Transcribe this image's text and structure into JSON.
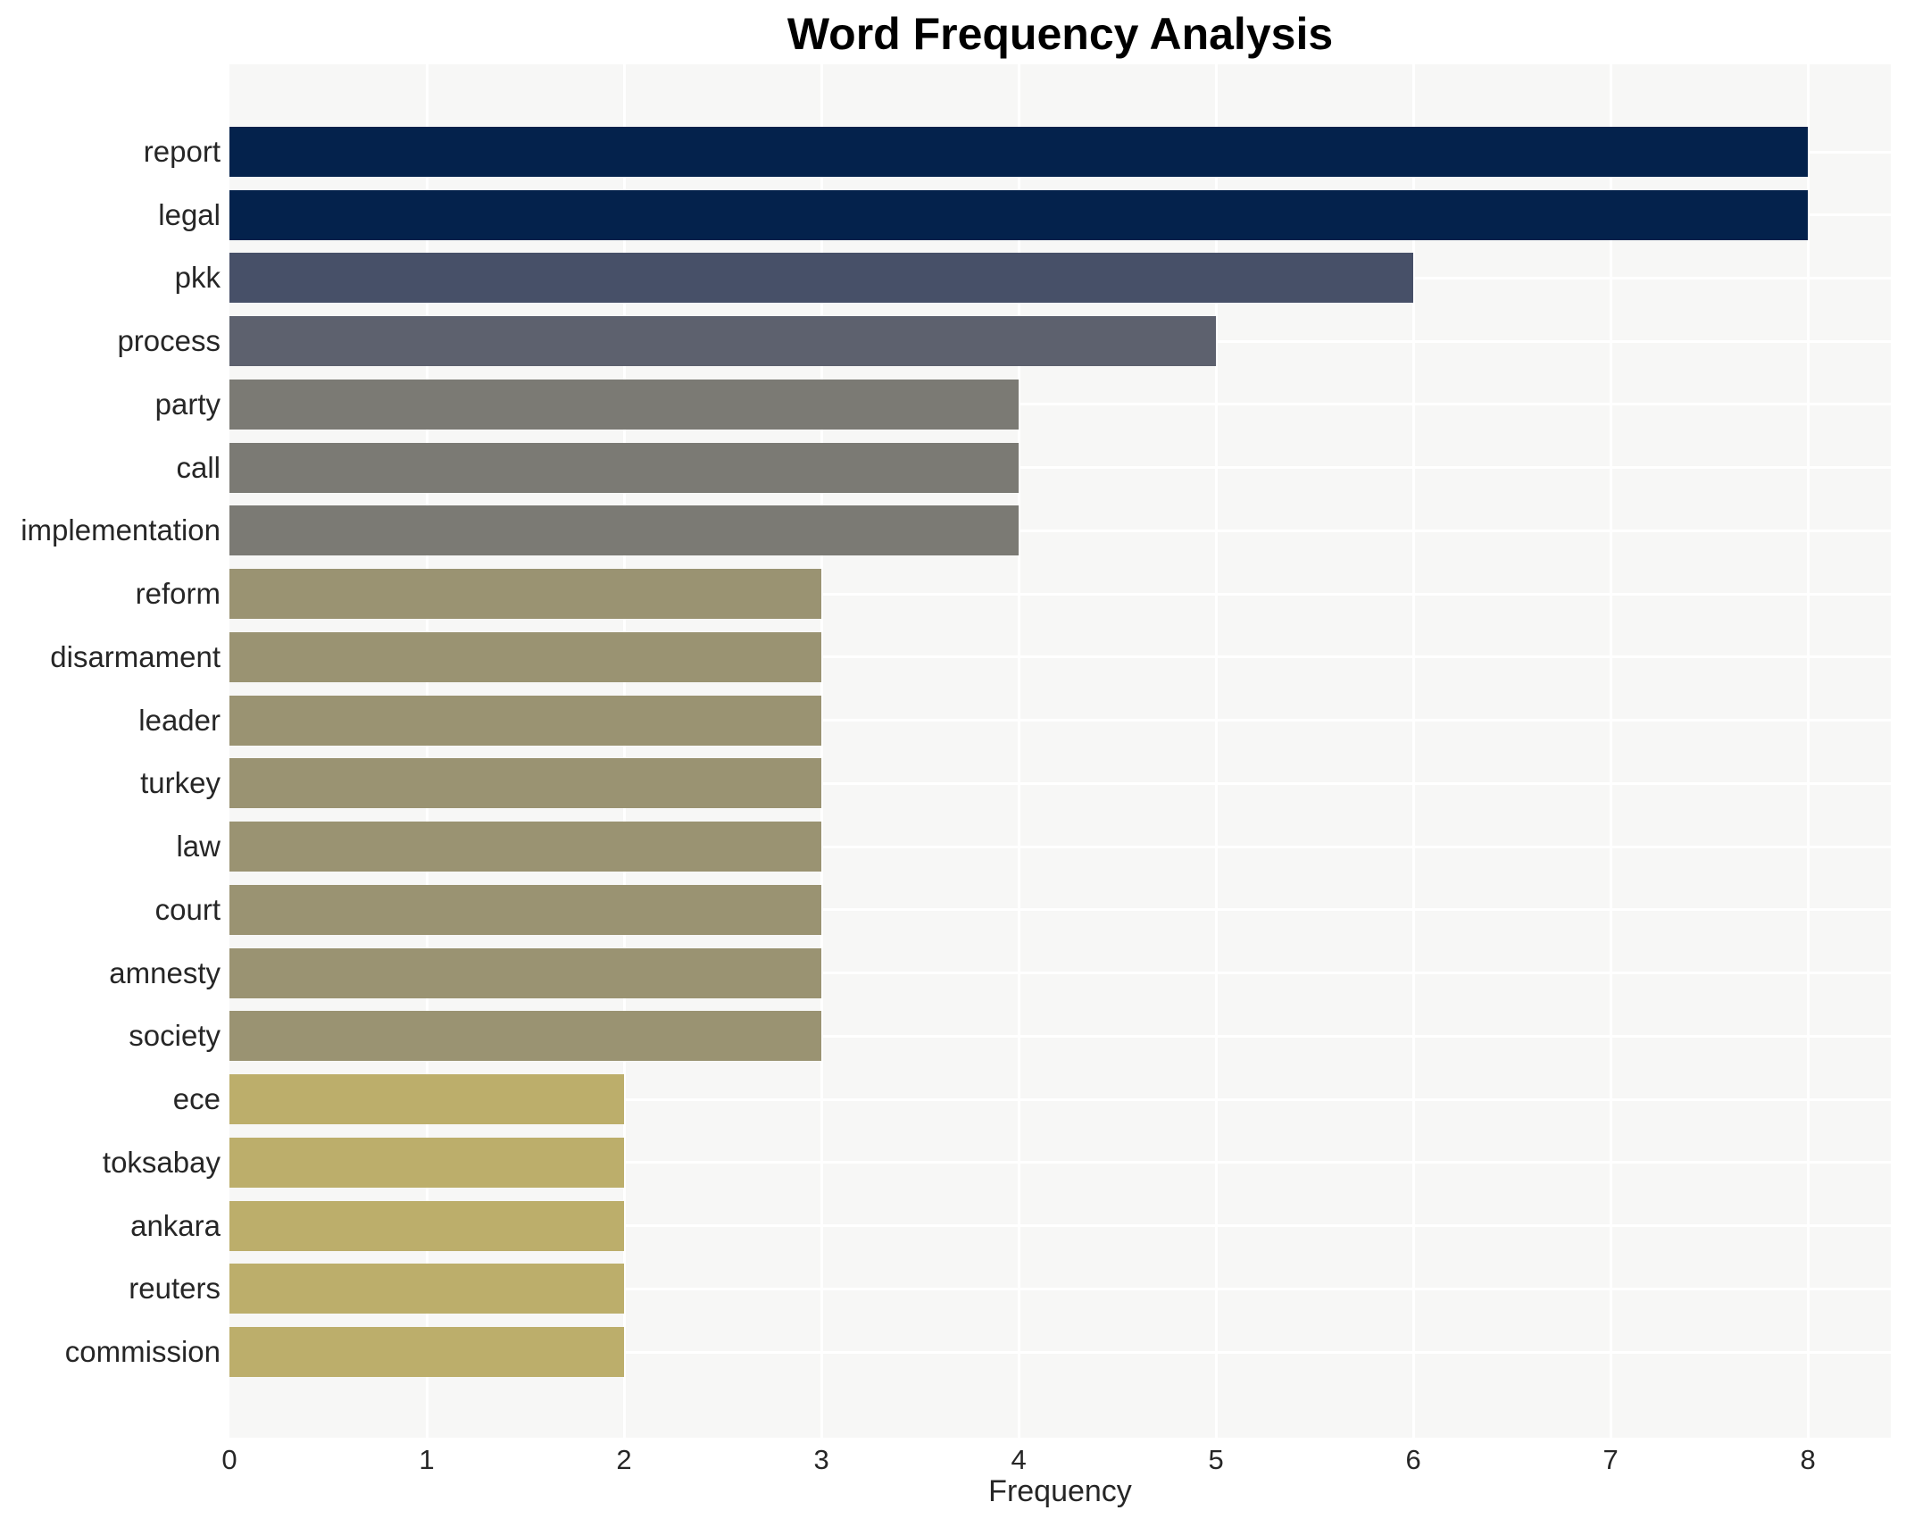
{
  "title": "Word Frequency Analysis",
  "xlabel": "Frequency",
  "colors": {
    "plot_background": "#f7f7f6",
    "grid": "#ffffff",
    "page_background": "#ffffff",
    "title_text": "#000000",
    "tick_text": "#262626"
  },
  "chart_data": {
    "type": "bar",
    "orientation": "horizontal",
    "title": "Word Frequency Analysis",
    "xlabel": "Frequency",
    "ylabel": "",
    "categories": [
      "report",
      "legal",
      "pkk",
      "process",
      "party",
      "call",
      "implementation",
      "reform",
      "disarmament",
      "leader",
      "turkey",
      "law",
      "court",
      "amnesty",
      "society",
      "ece",
      "toksabay",
      "ankara",
      "reuters",
      "commission"
    ],
    "values": [
      8,
      8,
      6,
      5,
      4,
      4,
      4,
      3,
      3,
      3,
      3,
      3,
      3,
      3,
      3,
      2,
      2,
      2,
      2,
      2
    ],
    "bar_colors": [
      "#04224c",
      "#04224c",
      "#475068",
      "#5d616e",
      "#7b7a74",
      "#7b7a74",
      "#7b7a74",
      "#9a9372",
      "#9a9372",
      "#9a9372",
      "#9a9372",
      "#9a9372",
      "#9a9372",
      "#9a9372",
      "#9a9372",
      "#bcae6b",
      "#bcae6b",
      "#bcae6b",
      "#bcae6b",
      "#bcae6b"
    ],
    "xticks": [
      0,
      1,
      2,
      3,
      4,
      5,
      6,
      7,
      8
    ],
    "xlim": [
      0,
      8.42
    ],
    "grid": true,
    "legend": false
  }
}
